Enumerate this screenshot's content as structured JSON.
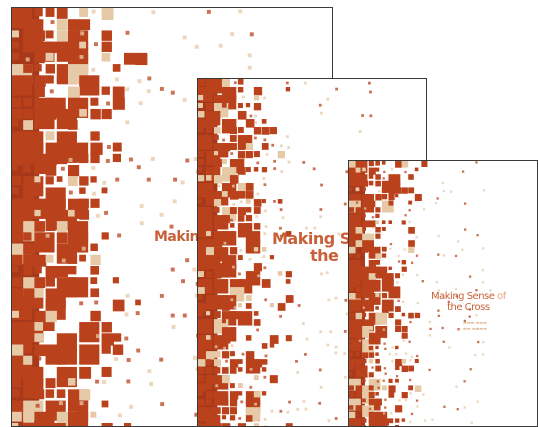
{
  "covers": {
    "large": {
      "title_part1": "Making",
      "title_part2": "",
      "title_line2": ""
    },
    "medium": {
      "title_part1": "Making Sens",
      "title_part2": "",
      "title_line2": "the"
    },
    "small": {
      "title_part1": "Making Sense",
      "title_part2": " of",
      "title_line2": "the Cross"
    }
  },
  "colors": {
    "rust": "#b9421c",
    "rust_dark": "#a7391a",
    "tan": "#e6c9a6",
    "title": "#c8603a",
    "title_accent": "#e3a780",
    "border": "#3a3a3a"
  }
}
